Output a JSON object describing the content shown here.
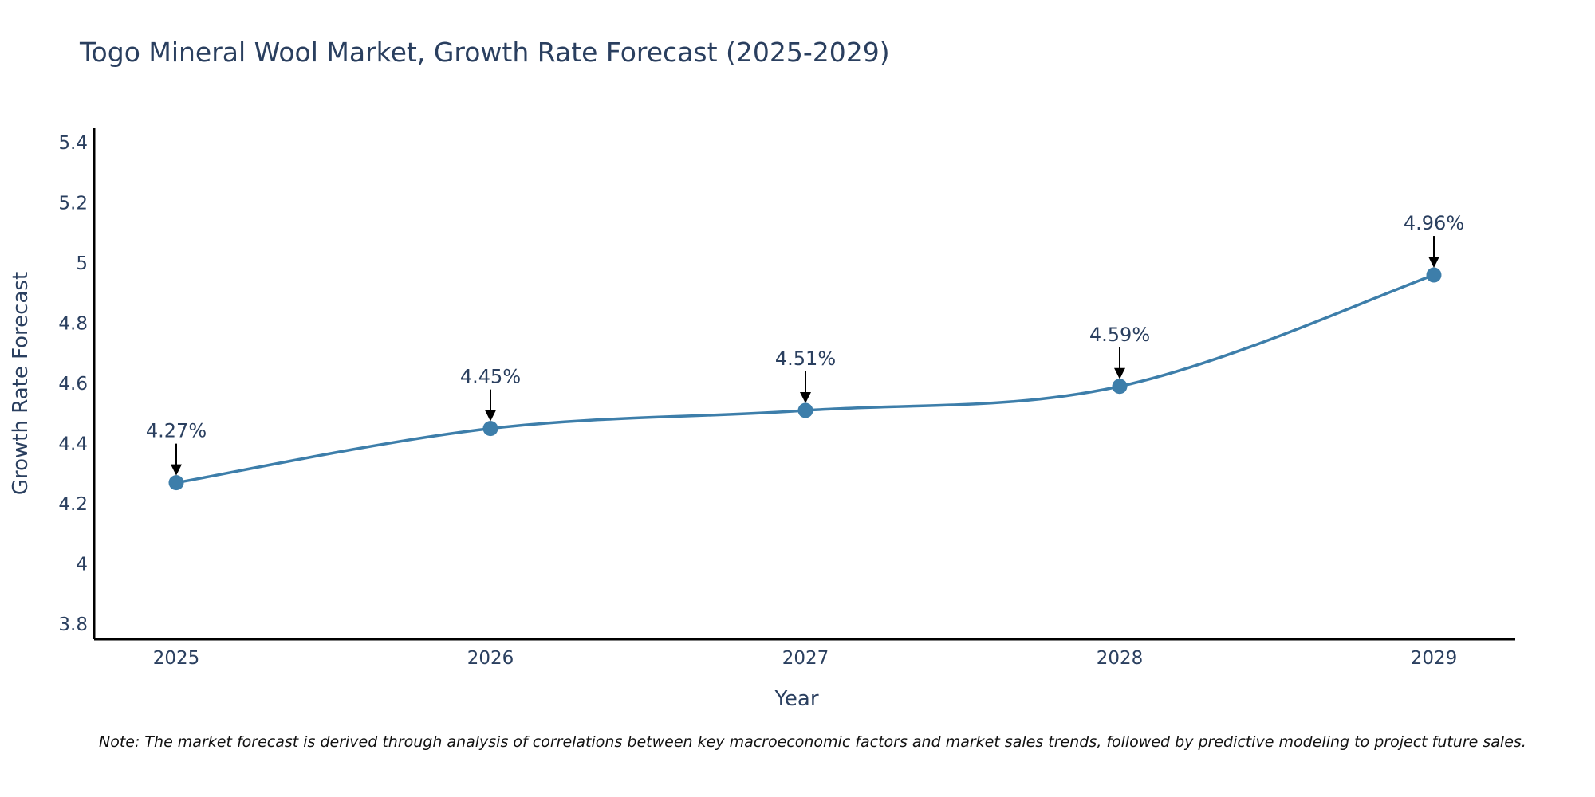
{
  "chart_data": {
    "type": "line",
    "title": "Togo Mineral Wool Market, Growth Rate Forecast (2025-2029)",
    "xlabel": "Year",
    "ylabel": "Growth Rate Forecast",
    "categories": [
      "2025",
      "2026",
      "2027",
      "2028",
      "2029"
    ],
    "series": [
      {
        "name": "Growth Rate Forecast",
        "values": [
          4.27,
          4.45,
          4.51,
          4.59,
          4.96
        ]
      }
    ],
    "data_labels": [
      "4.27%",
      "4.45%",
      "4.51%",
      "4.59%",
      "4.96%"
    ],
    "ylim": [
      3.75,
      5.45
    ],
    "yticks": [
      3.8,
      4,
      4.2,
      4.4,
      4.6,
      4.8,
      5,
      5.2,
      5.4
    ],
    "ytick_labels": [
      "3.8",
      "4",
      "4.2",
      "4.4",
      "4.6",
      "4.8",
      "5",
      "5.2",
      "5.4"
    ],
    "grid": false,
    "line_color": "#3d7eaa",
    "marker_color": "#3d7eaa",
    "annotation_arrow_color": "#000000"
  },
  "note": "Note: The market forecast is derived through analysis of correlations between key macroeconomic factors and market sales trends, followed by predictive modeling to project future sales."
}
